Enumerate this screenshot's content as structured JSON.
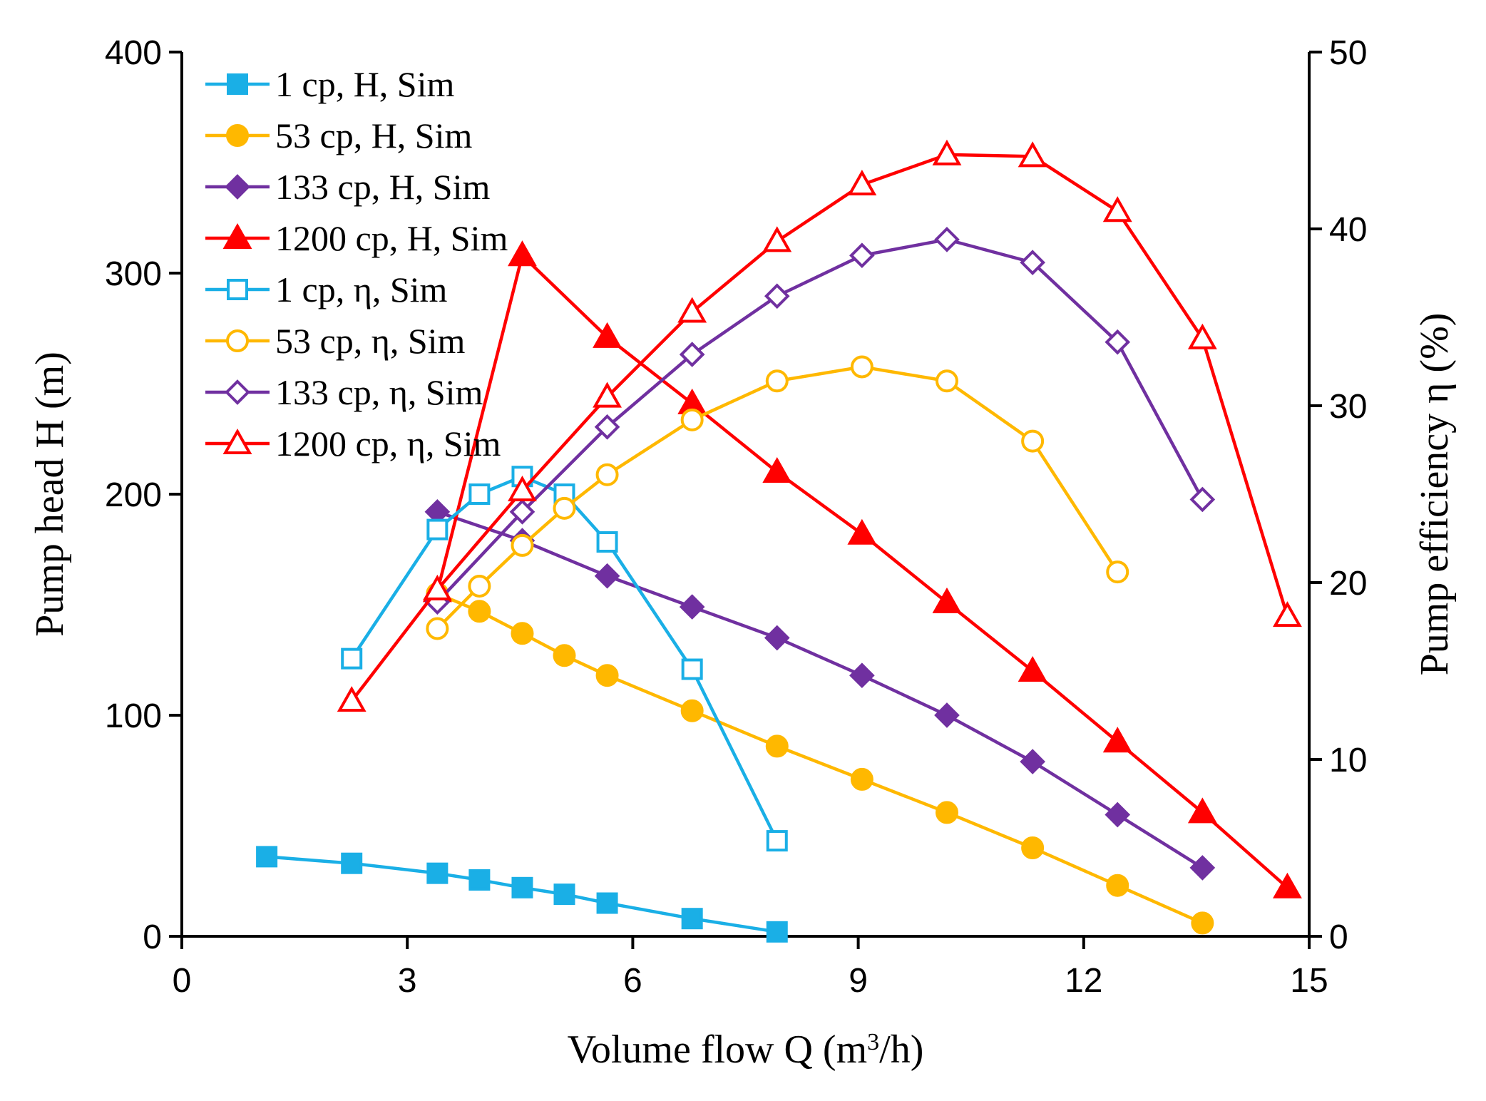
{
  "chart_data": {
    "type": "line",
    "title": "",
    "xlabel": "Volume flow Q (m",
    "xlabel_sup": "3",
    "xlabel_end": "/h)",
    "ylabel_left": "Pump head H (m)",
    "ylabel_right": "Pump efficiency η (%)",
    "xlim": [
      0,
      15
    ],
    "ylim_left": [
      0,
      400
    ],
    "ylim_right": [
      0,
      50
    ],
    "x_ticks": [
      0,
      3,
      6,
      9,
      12,
      15
    ],
    "y_left_ticks": [
      0,
      100,
      200,
      300,
      400
    ],
    "y_right_ticks": [
      0,
      10,
      20,
      30,
      40,
      50
    ],
    "grid": false,
    "legend_position": "top-left",
    "series": [
      {
        "name": "1 cp, H, Sim",
        "axis": "left",
        "color": "#1AAFE6",
        "marker": "square",
        "filled": true,
        "x": [
          1.13,
          2.26,
          3.4,
          3.96,
          4.53,
          5.09,
          5.66,
          6.79,
          7.92
        ],
        "values": [
          36,
          33,
          28.5,
          25.5,
          22,
          19,
          15,
          8,
          2
        ]
      },
      {
        "name": "53 cp, H, Sim",
        "axis": "left",
        "color": "#FFB800",
        "marker": "circle",
        "filled": true,
        "x": [
          3.4,
          3.96,
          4.53,
          5.09,
          5.66,
          6.79,
          7.92,
          9.05,
          10.18,
          11.32,
          12.45,
          13.58
        ],
        "values": [
          155,
          147,
          137,
          127,
          118,
          102,
          86,
          71,
          56,
          40,
          23,
          6
        ]
      },
      {
        "name": "133 cp, H, Sim",
        "axis": "left",
        "color": "#7030A0",
        "marker": "diamond",
        "filled": true,
        "x": [
          3.4,
          4.53,
          5.66,
          6.79,
          7.92,
          9.05,
          10.18,
          11.32,
          12.45,
          13.58
        ],
        "values": [
          192,
          179,
          163,
          149,
          135,
          118,
          100,
          79,
          55,
          31
        ]
      },
      {
        "name": "1200 cp, H, Sim",
        "axis": "left",
        "color": "#FF0000",
        "marker": "triangle",
        "filled": true,
        "x": [
          3.4,
          4.53,
          5.66,
          6.79,
          7.92,
          9.05,
          10.18,
          11.32,
          12.45,
          13.58,
          14.71
        ],
        "values": [
          156,
          308,
          271,
          241,
          210,
          182,
          151,
          120,
          88,
          56,
          22
        ]
      },
      {
        "name": "1 cp, η, Sim",
        "axis": "right",
        "color": "#1AAFE6",
        "marker": "square",
        "filled": false,
        "x": [
          2.26,
          3.4,
          3.96,
          4.53,
          5.09,
          5.66,
          6.79,
          7.92
        ],
        "values": [
          15.7,
          23,
          25,
          26,
          25,
          22.3,
          15.1,
          5.4
        ]
      },
      {
        "name": "53 cp, η, Sim",
        "axis": "right",
        "color": "#FFB800",
        "marker": "circle",
        "filled": false,
        "x": [
          3.4,
          3.96,
          4.53,
          5.09,
          5.66,
          6.79,
          7.92,
          9.05,
          10.18,
          11.32,
          12.45
        ],
        "values": [
          17.4,
          19.8,
          22.1,
          24.2,
          26.1,
          29.2,
          31.4,
          32.2,
          31.4,
          28,
          20.6
        ]
      },
      {
        "name": "133 cp, η, Sim",
        "axis": "right",
        "color": "#7030A0",
        "marker": "diamond",
        "filled": false,
        "x": [
          3.4,
          4.53,
          5.66,
          6.79,
          7.92,
          9.05,
          10.18,
          11.32,
          12.45,
          13.58
        ],
        "values": [
          18.9,
          24,
          28.8,
          32.9,
          36.2,
          38.5,
          39.4,
          38.1,
          33.6,
          24.7
        ]
      },
      {
        "name": "1200 cp, η, Sim",
        "axis": "right",
        "color": "#FF0000",
        "marker": "triangle",
        "filled": false,
        "x": [
          2.26,
          3.4,
          4.53,
          5.66,
          6.79,
          7.92,
          9.05,
          10.18,
          11.32,
          12.45,
          13.58,
          14.71
        ],
        "values": [
          13.3,
          19.6,
          25.2,
          30.5,
          35.3,
          39.3,
          42.5,
          44.2,
          44.1,
          41,
          33.8,
          18.1
        ]
      }
    ]
  }
}
